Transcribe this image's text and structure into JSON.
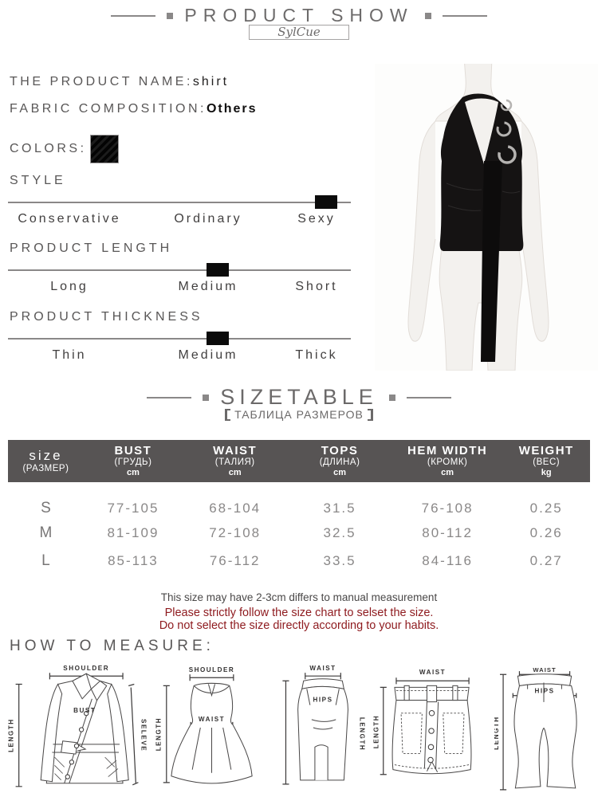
{
  "header": {
    "title": "PRODUCT SHOW",
    "brand": "SylCue"
  },
  "product": {
    "name_label": "THE PRODUCT NAME:",
    "name_value": "shirt",
    "fabric_label": "FABRIC COMPOSITION:",
    "fabric_value": "Others",
    "colors_label": "COLORS:",
    "swatch_color": "#0a0a0a"
  },
  "attributes": [
    {
      "title": "STYLE",
      "options": [
        "Conservative",
        "Ordinary",
        "Sexy"
      ],
      "selected_index": 2
    },
    {
      "title": "PRODUCT LENGTH",
      "options": [
        "Long",
        "Medium",
        "Short"
      ],
      "selected_index": 1
    },
    {
      "title": "PRODUCT THICKNESS",
      "options": [
        "Thin",
        "Medium",
        "Thick"
      ],
      "selected_index": 1
    }
  ],
  "sizetable": {
    "title": "SIZETABLE",
    "subtitle": "ТАБЛИЦА РАЗМЕРОВ",
    "header_bg": "#575454",
    "columns": [
      {
        "en": "size",
        "sub": "(РАЗМЕР)",
        "unit": ""
      },
      {
        "en": "BUST",
        "sub": "(ГРУДЬ)",
        "unit": "cm"
      },
      {
        "en": "WAIST",
        "sub": "(ТАЛИЯ)",
        "unit": "cm"
      },
      {
        "en": "TOPS",
        "sub": "(ДЛИНА)",
        "unit": "cm"
      },
      {
        "en": "HEM WIDTH",
        "sub": "(КРОМК)",
        "unit": "cm"
      },
      {
        "en": "WEIGHT",
        "sub": "(ВЕС)",
        "unit": "kg"
      }
    ],
    "rows": [
      {
        "size": "S",
        "bust": "77-105",
        "waist": "68-104",
        "tops": "31.5",
        "hem": "76-108",
        "weight": "0.25"
      },
      {
        "size": "M",
        "bust": "81-109",
        "waist": "72-108",
        "tops": "32.5",
        "hem": "80-112",
        "weight": "0.26"
      },
      {
        "size": "L",
        "bust": "85-113",
        "waist": "76-112",
        "tops": "33.5",
        "hem": "84-116",
        "weight": "0.27"
      }
    ]
  },
  "notes": {
    "line1": "This size may have 2-3cm differs to manual measurement",
    "line2": "Please strictly follow the size chart to selset the size.",
    "line3": "Do not select the size directly according to your habits.",
    "warning_color": "#8e1a1e"
  },
  "measure": {
    "title": "HOW TO MEASURE:",
    "jacket": {
      "shoulder": "SHOULDER",
      "length": "LENGTH",
      "bust": "BUST",
      "sleeve": "SELEVE"
    },
    "dress": {
      "shoulder": "SHOULDER",
      "waist": "WAIST",
      "length": "LENGTH"
    },
    "pencil_skirt": {
      "waist": "WAIST",
      "hips": "HIPS",
      "length": "LENGTH"
    },
    "mini_skirt": {
      "waist": "WAIST",
      "length": "LENGTH"
    },
    "pants": {
      "waist": "WAIST",
      "hips": "HIPS",
      "length": "LENGTH"
    }
  }
}
